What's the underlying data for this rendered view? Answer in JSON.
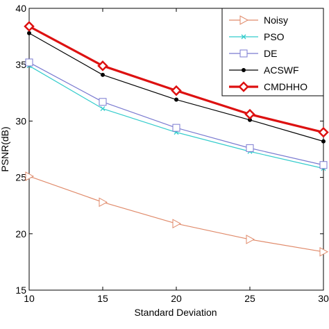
{
  "chart_data": {
    "type": "line",
    "title": "",
    "xlabel": "Standard Deviation",
    "ylabel": "PSNR(dB)",
    "xlim": [
      10,
      30
    ],
    "ylim": [
      15,
      40
    ],
    "xticks": [
      10,
      15,
      20,
      25,
      30
    ],
    "yticks": [
      15,
      20,
      25,
      30,
      35,
      40
    ],
    "x": [
      10,
      15,
      20,
      25,
      30
    ],
    "grid": false,
    "legend_position": "top-right",
    "series": [
      {
        "name": "Noisy",
        "values": [
          25.1,
          22.8,
          20.9,
          19.5,
          18.4
        ],
        "color": "#e08a6a",
        "marker": "triangle-right",
        "line_width": 1.2
      },
      {
        "name": "PSO",
        "values": [
          34.9,
          31.1,
          29.0,
          27.3,
          25.8
        ],
        "color": "#33cccc",
        "marker": "x",
        "line_width": 1.2
      },
      {
        "name": "DE",
        "values": [
          35.2,
          31.7,
          29.4,
          27.6,
          26.1
        ],
        "color": "#7a7ad0",
        "marker": "square",
        "line_width": 1.2
      },
      {
        "name": "ACSWF",
        "values": [
          37.8,
          34.1,
          31.9,
          30.1,
          28.2
        ],
        "color": "#000000",
        "marker": "dot",
        "line_width": 1.2
      },
      {
        "name": "CMDHHO",
        "values": [
          38.4,
          34.9,
          32.7,
          30.6,
          29.0
        ],
        "color": "#dd1111",
        "marker": "diamond",
        "line_width": 3.2
      }
    ]
  }
}
